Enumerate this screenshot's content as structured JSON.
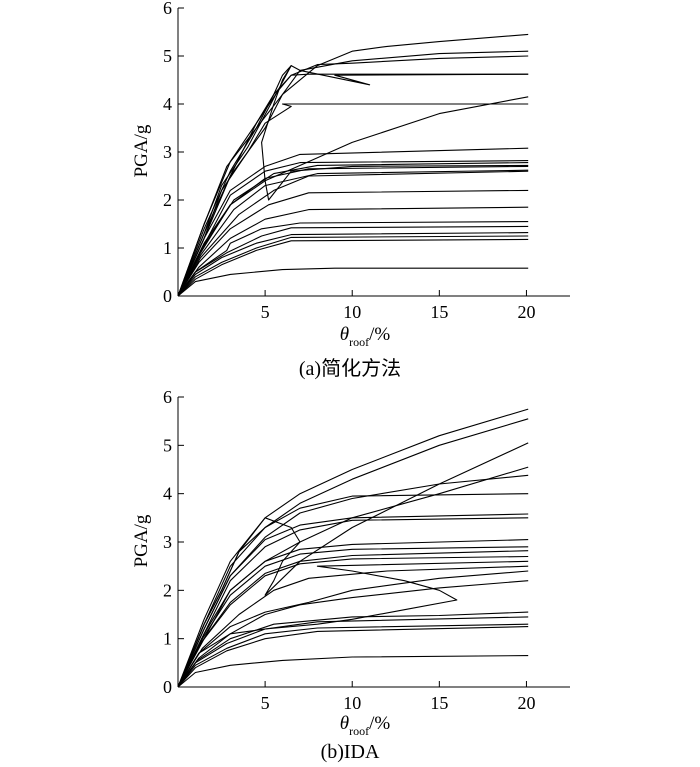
{
  "chart_data": [
    {
      "type": "line",
      "caption": "(a)简化方法",
      "ylabel": "PGA/g",
      "xlabel": {
        "symbol": "θ",
        "subscript": "roof",
        "unit": "/%"
      },
      "xlim": [
        0,
        22.5
      ],
      "ylim": [
        0,
        6
      ],
      "xticks": [
        5,
        10,
        15,
        20
      ],
      "yticks": [
        0,
        1,
        2,
        3,
        4,
        5,
        6
      ],
      "grid": false,
      "series": [
        {
          "x": [
            0.0,
            1.0,
            3.0,
            6.0,
            9.0,
            20.1
          ],
          "y": [
            0.0,
            0.3,
            0.45,
            0.55,
            0.58,
            0.58
          ]
        },
        {
          "x": [
            0.0,
            1.0,
            2.5,
            4.5,
            6.5,
            20.1
          ],
          "y": [
            0.0,
            0.35,
            0.65,
            0.95,
            1.15,
            1.18
          ]
        },
        {
          "x": [
            0.0,
            1.0,
            2.5,
            4.5,
            6.5,
            20.1
          ],
          "y": [
            0.0,
            0.4,
            0.7,
            1.0,
            1.22,
            1.25
          ]
        },
        {
          "x": [
            0.0,
            1.0,
            2.5,
            4.5,
            6.5,
            20.1
          ],
          "y": [
            0.0,
            0.45,
            0.8,
            1.1,
            1.28,
            1.32
          ]
        },
        {
          "x": [
            0.0,
            1.0,
            2.8,
            4.8,
            6.5,
            20.1
          ],
          "y": [
            0.0,
            0.5,
            0.9,
            1.25,
            1.42,
            1.45
          ]
        },
        {
          "x": [
            0.0,
            1.0,
            2.8,
            3.0,
            4.8,
            7.0,
            20.1
          ],
          "y": [
            0.0,
            0.5,
            0.95,
            1.1,
            1.4,
            1.52,
            1.55
          ]
        },
        {
          "x": [
            0.0,
            1.2,
            3.0,
            5.0,
            7.5,
            20.1
          ],
          "y": [
            0.0,
            0.6,
            1.2,
            1.6,
            1.8,
            1.85
          ]
        },
        {
          "x": [
            0.0,
            1.2,
            3.0,
            5.2,
            7.5,
            20.1
          ],
          "y": [
            0.0,
            0.7,
            1.4,
            1.9,
            2.15,
            2.2
          ]
        },
        {
          "x": [
            0.0,
            1.3,
            3.5,
            5.5,
            7.5,
            20.1
          ],
          "y": [
            0.0,
            0.8,
            1.7,
            2.2,
            2.5,
            2.6
          ]
        },
        {
          "x": [
            0.0,
            1.3,
            3.2,
            5.0,
            8.0,
            20.1
          ],
          "y": [
            0.0,
            0.85,
            1.8,
            2.3,
            2.55,
            2.62
          ]
        },
        {
          "x": [
            0.0,
            1.3,
            3.0,
            5.0,
            7.5,
            20.1
          ],
          "y": [
            0.0,
            0.9,
            1.9,
            2.45,
            2.65,
            2.7
          ]
        },
        {
          "x": [
            0.0,
            1.4,
            3.2,
            5.5,
            8.0,
            20.1
          ],
          "y": [
            0.0,
            1.0,
            2.0,
            2.55,
            2.72,
            2.78
          ]
        },
        {
          "x": [
            0.0,
            1.4,
            3.0,
            5.0,
            7.0,
            20.1
          ],
          "y": [
            0.0,
            1.0,
            2.1,
            2.6,
            2.78,
            2.82
          ]
        },
        {
          "x": [
            0.0,
            1.5,
            3.0,
            5.0,
            7.0,
            20.1
          ],
          "y": [
            0.0,
            1.2,
            2.2,
            2.7,
            2.95,
            3.08
          ]
        },
        {
          "x": [
            0.0,
            1.5,
            2.5,
            4.0,
            5.0,
            6.5,
            6.0,
            20.1
          ],
          "y": [
            0.0,
            1.2,
            2.2,
            3.0,
            3.6,
            3.95,
            4.0,
            4.0
          ]
        },
        {
          "x": [
            0.0,
            1.5,
            3.0,
            5.0,
            7.5,
            10.0,
            15.0,
            20.1
          ],
          "y": [
            0.0,
            1.1,
            1.9,
            2.4,
            2.8,
            3.2,
            3.8,
            4.15
          ]
        },
        {
          "x": [
            0.0,
            1.5,
            3.0,
            4.5,
            5.8,
            6.5,
            7.5,
            10.0,
            20.1
          ],
          "y": [
            0.0,
            1.3,
            2.5,
            3.6,
            4.3,
            4.6,
            4.62,
            4.62,
            4.62
          ]
        },
        {
          "x": [
            0.0,
            1.5,
            3.0,
            4.5,
            5.5,
            6.0,
            6.5,
            7.0,
            11.0,
            9.0,
            20.1
          ],
          "y": [
            0.0,
            1.4,
            2.6,
            3.5,
            4.2,
            4.6,
            4.8,
            4.7,
            4.4,
            4.6,
            4.62
          ]
        },
        {
          "x": [
            0.0,
            1.5,
            3.0,
            4.5,
            5.5,
            6.5,
            8.0,
            10.0,
            15.0,
            20.1
          ],
          "y": [
            0.0,
            1.5,
            2.8,
            3.6,
            4.2,
            4.6,
            4.82,
            4.85,
            4.95,
            5.0
          ]
        },
        {
          "x": [
            0.0,
            1.4,
            2.8,
            4.5,
            6.0,
            7.0,
            10.0,
            15.0,
            20.1
          ],
          "y": [
            0.0,
            1.4,
            2.7,
            3.5,
            4.2,
            4.7,
            4.9,
            5.05,
            5.1
          ]
        },
        {
          "x": [
            0.0,
            1.5,
            2.5,
            4.0,
            6.5,
            6.0,
            5.5,
            4.8,
            5.0,
            5.2,
            6.5,
            10.0,
            20.1
          ],
          "y": [
            0.0,
            1.3,
            2.3,
            3.1,
            4.8,
            4.5,
            4.0,
            3.2,
            2.4,
            2.0,
            2.6,
            2.7,
            2.72
          ]
        },
        {
          "x": [
            0.0,
            1.5,
            3.0,
            5.0,
            6.0,
            8.0,
            10.0,
            12.0,
            15.0,
            20.1
          ],
          "y": [
            0.0,
            1.2,
            2.5,
            3.5,
            4.2,
            4.8,
            5.1,
            5.2,
            5.3,
            5.45
          ]
        }
      ]
    },
    {
      "type": "line",
      "caption": "(b)IDA",
      "ylabel": "PGA/g",
      "xlabel": {
        "symbol": "θ",
        "subscript": "roof",
        "unit": "/%"
      },
      "xlim": [
        0,
        22.5
      ],
      "ylim": [
        0,
        6
      ],
      "xticks": [
        5,
        10,
        15,
        20
      ],
      "yticks": [
        0,
        1,
        2,
        3,
        4,
        5,
        6
      ],
      "grid": false,
      "series": [
        {
          "x": [
            0.0,
            1.0,
            3.0,
            6.0,
            10.0,
            20.1
          ],
          "y": [
            0.0,
            0.3,
            0.45,
            0.55,
            0.62,
            0.65
          ]
        },
        {
          "x": [
            0.0,
            1.0,
            2.8,
            5.0,
            8.0,
            20.1
          ],
          "y": [
            0.0,
            0.4,
            0.75,
            1.0,
            1.15,
            1.25
          ]
        },
        {
          "x": [
            0.0,
            1.0,
            2.8,
            5.0,
            8.0,
            20.1
          ],
          "y": [
            0.0,
            0.45,
            0.8,
            1.1,
            1.22,
            1.3
          ]
        },
        {
          "x": [
            0.0,
            1.0,
            2.8,
            5.0,
            8.0,
            20.1
          ],
          "y": [
            0.0,
            0.5,
            0.9,
            1.2,
            1.35,
            1.45
          ]
        },
        {
          "x": [
            0.0,
            1.1,
            3.0,
            5.5,
            10.0,
            15.0,
            20.1
          ],
          "y": [
            0.0,
            0.55,
            1.0,
            1.3,
            1.45,
            1.48,
            1.55
          ]
        },
        {
          "x": [
            0.0,
            1.2,
            3.0,
            5.0,
            7.0,
            10.0,
            15.0,
            20.1
          ],
          "y": [
            0.0,
            0.6,
            1.1,
            1.5,
            1.7,
            1.85,
            2.05,
            2.2
          ]
        },
        {
          "x": [
            0.0,
            1.2,
            3.0,
            5.0,
            7.5,
            10.0,
            15.0,
            20.1
          ],
          "y": [
            0.0,
            0.7,
            1.25,
            1.55,
            1.75,
            2.0,
            2.25,
            2.4
          ]
        },
        {
          "x": [
            0.0,
            1.4,
            3.5,
            5.5,
            7.5,
            12.0,
            20.1
          ],
          "y": [
            0.0,
            0.8,
            1.5,
            2.0,
            2.25,
            2.4,
            2.5
          ]
        },
        {
          "x": [
            0.0,
            1.2,
            3.0,
            5.0,
            8.0,
            10.0,
            13.0,
            16.0,
            15.0,
            13.0,
            10.0,
            8.0,
            20.1
          ],
          "y": [
            0.0,
            0.7,
            1.1,
            1.2,
            1.3,
            1.4,
            1.6,
            1.8,
            2.0,
            2.2,
            2.4,
            2.5,
            2.6
          ]
        },
        {
          "x": [
            0.0,
            1.3,
            3.0,
            5.0,
            7.0,
            10.0,
            20.1
          ],
          "y": [
            0.0,
            0.9,
            1.7,
            2.3,
            2.55,
            2.65,
            2.7
          ]
        },
        {
          "x": [
            0.0,
            1.3,
            3.0,
            5.0,
            7.0,
            10.0,
            20.1
          ],
          "y": [
            0.0,
            0.9,
            1.75,
            2.35,
            2.6,
            2.72,
            2.82
          ]
        },
        {
          "x": [
            0.0,
            1.4,
            3.0,
            5.0,
            7.0,
            10.0,
            20.1
          ],
          "y": [
            0.0,
            1.0,
            1.9,
            2.5,
            2.75,
            2.85,
            2.9
          ]
        },
        {
          "x": [
            0.0,
            1.5,
            3.0,
            5.0,
            7.0,
            10.0,
            20.1
          ],
          "y": [
            0.0,
            1.0,
            2.0,
            2.6,
            2.85,
            2.95,
            3.05
          ]
        },
        {
          "x": [
            0.0,
            1.5,
            3.0,
            5.0,
            7.0,
            10.0,
            20.1
          ],
          "y": [
            0.0,
            1.1,
            2.2,
            2.9,
            3.25,
            3.45,
            3.5
          ]
        },
        {
          "x": [
            0.0,
            1.5,
            3.0,
            5.0,
            7.0,
            10.0,
            20.1
          ],
          "y": [
            0.0,
            1.2,
            2.3,
            3.05,
            3.35,
            3.5,
            3.58
          ]
        },
        {
          "x": [
            0.0,
            1.5,
            2.5,
            3.5,
            5.0,
            7.0,
            10.0,
            20.1
          ],
          "y": [
            0.0,
            1.3,
            2.0,
            2.8,
            3.3,
            3.7,
            3.95,
            4.0
          ]
        },
        {
          "x": [
            0.0,
            1.5,
            3.0,
            5.0,
            7.0,
            10.0,
            15.0,
            20.1
          ],
          "y": [
            0.0,
            1.2,
            2.3,
            3.1,
            3.6,
            3.9,
            4.2,
            4.38
          ]
        },
        {
          "x": [
            0.0,
            1.5,
            3.0,
            5.0,
            7.0,
            10.0,
            15.0,
            20.1
          ],
          "y": [
            0.0,
            1.1,
            2.0,
            2.6,
            3.0,
            3.5,
            4.0,
            4.55
          ]
        },
        {
          "x": [
            0.0,
            1.5,
            2.5,
            3.5,
            5.0,
            6.5,
            7.0,
            6.0,
            5.5,
            5.0,
            7.0,
            10.0,
            15.0,
            20.1
          ],
          "y": [
            0.0,
            1.3,
            2.0,
            2.8,
            3.5,
            3.3,
            3.0,
            2.6,
            2.2,
            1.9,
            2.6,
            3.3,
            4.2,
            5.05
          ]
        },
        {
          "x": [
            0.0,
            1.5,
            3.0,
            5.0,
            7.0,
            10.0,
            15.0,
            20.1
          ],
          "y": [
            0.0,
            1.3,
            2.5,
            3.3,
            3.8,
            4.3,
            5.0,
            5.55
          ]
        },
        {
          "x": [
            0.0,
            1.5,
            3.0,
            5.0,
            7.0,
            10.0,
            15.0,
            20.1
          ],
          "y": [
            0.0,
            1.4,
            2.6,
            3.5,
            4.0,
            4.5,
            5.2,
            5.75
          ]
        }
      ]
    }
  ]
}
